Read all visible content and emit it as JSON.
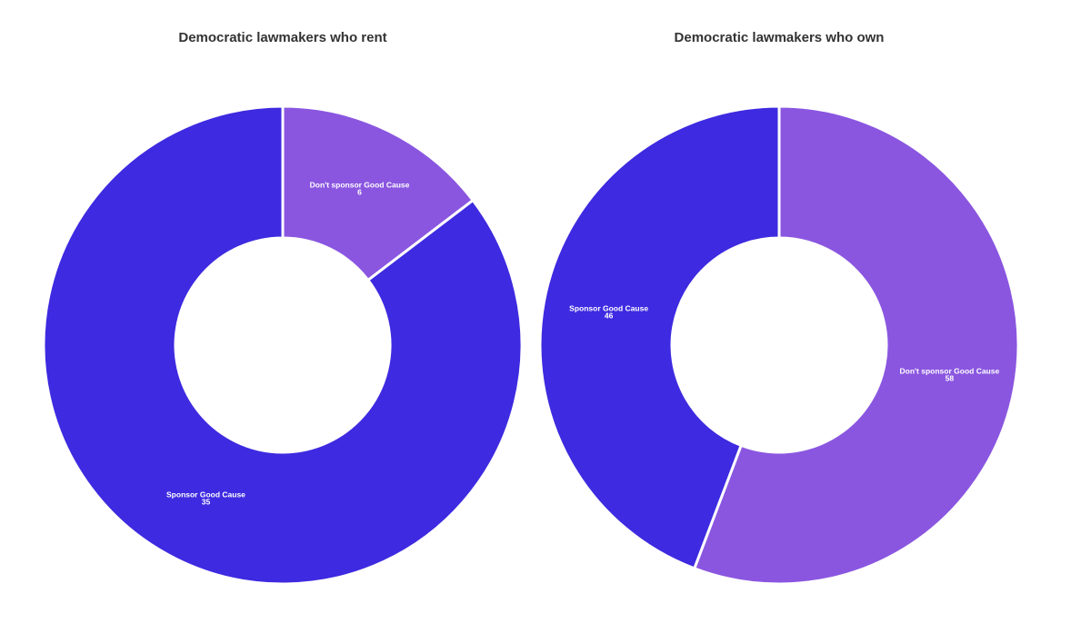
{
  "chart_data": [
    {
      "type": "donut",
      "title": "Democratic lawmakers who rent",
      "categories": [
        "Don't sponsor Good Cause",
        "Sponsor Good Cause"
      ],
      "values": [
        6,
        35
      ],
      "colors": [
        "#8a56e0",
        "#3e2ae0"
      ]
    },
    {
      "type": "donut",
      "title": "Democratic lawmakers who own",
      "categories": [
        "Don't sponsor Good Cause",
        "Sponsor Good Cause"
      ],
      "values": [
        58,
        46
      ],
      "colors": [
        "#8a56e0",
        "#3e2ae0"
      ]
    }
  ]
}
